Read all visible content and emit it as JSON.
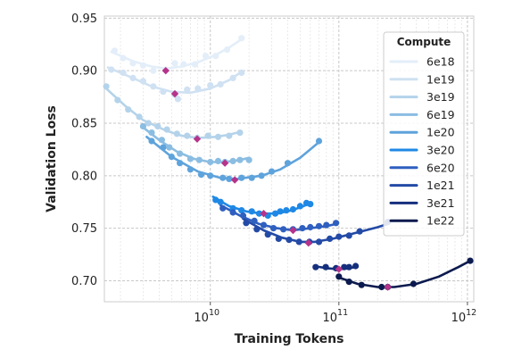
{
  "chart_data": {
    "type": "scatter",
    "xlabel": "Training Tokens",
    "ylabel": "Validation Loss",
    "x_scale": "log",
    "xlim": [
      1500000000.0,
      1120000000000.0
    ],
    "ylim": [
      0.68,
      0.952
    ],
    "x_ticks": [
      {
        "value": 10000000000.0,
        "base": "10",
        "exp": "10"
      },
      {
        "value": 100000000000.0,
        "base": "10",
        "exp": "11"
      },
      {
        "value": 1000000000000.0,
        "base": "10",
        "exp": "12"
      }
    ],
    "y_ticks": [
      {
        "value": 0.7,
        "label": "0.70"
      },
      {
        "value": 0.75,
        "label": "0.75"
      },
      {
        "value": 0.8,
        "label": "0.80"
      },
      {
        "value": 0.85,
        "label": "0.85"
      },
      {
        "value": 0.9,
        "label": "0.90"
      },
      {
        "value": 0.95,
        "label": "0.95"
      }
    ],
    "grid": true,
    "legend": {
      "title": "Compute",
      "placement": "top-right"
    },
    "optimum_color": "#b5338a",
    "series": [
      {
        "name": "6e18",
        "color": "#e3eef9",
        "points": [
          [
            1800000000.0,
            0.919
          ],
          [
            2100000000.0,
            0.912
          ],
          [
            2500000000.0,
            0.907
          ],
          [
            3000000000.0,
            0.905
          ],
          [
            3600000000.0,
            0.9
          ],
          [
            4500000000.0,
            0.901
          ],
          [
            5300000000.0,
            0.907
          ],
          [
            6200000000.0,
            0.906
          ],
          [
            7600000000.0,
            0.906
          ],
          [
            9200000000.0,
            0.914
          ],
          [
            11000000000.0,
            0.914
          ],
          [
            13500000000.0,
            0.92
          ],
          [
            17500000000.0,
            0.931
          ]
        ],
        "fit": [
          [
            1700000000.0,
            0.918
          ],
          [
            2500000000.0,
            0.909
          ],
          [
            3500000000.0,
            0.904
          ],
          [
            4500000000.0,
            0.902
          ],
          [
            6000000000.0,
            0.904
          ],
          [
            8000000000.0,
            0.908
          ],
          [
            11000000000.0,
            0.915
          ],
          [
            14000000000.0,
            0.922
          ],
          [
            17500000000.0,
            0.93
          ]
        ],
        "optimum": [
          4500000000.0,
          0.9
        ]
      },
      {
        "name": "1e19",
        "color": "#cfe1f2",
        "points": [
          [
            1700000000.0,
            0.901
          ],
          [
            2100000000.0,
            0.898
          ],
          [
            2500000000.0,
            0.893
          ],
          [
            3000000000.0,
            0.89
          ],
          [
            3600000000.0,
            0.885
          ],
          [
            4300000000.0,
            0.88
          ],
          [
            5300000000.0,
            0.877
          ],
          [
            5600000000.0,
            0.873
          ],
          [
            6600000000.0,
            0.882
          ],
          [
            8000000000.0,
            0.883
          ],
          [
            10000000000.0,
            0.886
          ],
          [
            12000000000.0,
            0.887
          ],
          [
            15000000000.0,
            0.893
          ],
          [
            17500000000.0,
            0.898
          ]
        ],
        "fit": [
          [
            1600000000.0,
            0.903
          ],
          [
            2500000000.0,
            0.893
          ],
          [
            3500000000.0,
            0.885
          ],
          [
            5000000000.0,
            0.88
          ],
          [
            7000000000.0,
            0.879
          ],
          [
            10000000000.0,
            0.883
          ],
          [
            14000000000.0,
            0.891
          ],
          [
            17500000000.0,
            0.899
          ]
        ],
        "optimum": [
          5300000000.0,
          0.878
        ]
      },
      {
        "name": "3e19",
        "color": "#b4d3ea",
        "points": [
          [
            1550000000.0,
            0.885
          ],
          [
            1900000000.0,
            0.872
          ],
          [
            2300000000.0,
            0.863
          ],
          [
            2800000000.0,
            0.856
          ],
          [
            3300000000.0,
            0.85
          ],
          [
            3900000000.0,
            0.847
          ],
          [
            4600000000.0,
            0.844
          ],
          [
            5500000000.0,
            0.84
          ],
          [
            6600000000.0,
            0.838
          ],
          [
            7900000000.0,
            0.836
          ],
          [
            9600000000.0,
            0.838
          ],
          [
            11500000000.0,
            0.837
          ],
          [
            14000000000.0,
            0.838
          ],
          [
            17000000000.0,
            0.841
          ]
        ],
        "fit": [
          [
            1550000000.0,
            0.883
          ],
          [
            2200000000.0,
            0.866
          ],
          [
            3000000000.0,
            0.853
          ],
          [
            4500000000.0,
            0.843
          ],
          [
            6000000000.0,
            0.838
          ],
          [
            8000000000.0,
            0.836
          ],
          [
            11000000000.0,
            0.837
          ],
          [
            14000000000.0,
            0.839
          ],
          [
            17500000000.0,
            0.842
          ]
        ],
        "optimum": [
          7900000000.0,
          0.835
        ]
      },
      {
        "name": "6e19",
        "color": "#8bbde2",
        "points": [
          [
            3000000000.0,
            0.847
          ],
          [
            3500000000.0,
            0.841
          ],
          [
            4200000000.0,
            0.834
          ],
          [
            4800000000.0,
            0.827
          ],
          [
            5800000000.0,
            0.821
          ],
          [
            7000000000.0,
            0.816
          ],
          [
            8200000000.0,
            0.815
          ],
          [
            10000000000.0,
            0.813
          ],
          [
            11500000000.0,
            0.814
          ],
          [
            13000000000.0,
            0.813
          ],
          [
            15000000000.0,
            0.814
          ],
          [
            17000000000.0,
            0.815
          ],
          [
            20000000000.0,
            0.815
          ]
        ],
        "fit": [
          [
            3000000000.0,
            0.846
          ],
          [
            4000000000.0,
            0.834
          ],
          [
            5500000000.0,
            0.823
          ],
          [
            7500000000.0,
            0.816
          ],
          [
            10000000000.0,
            0.813
          ],
          [
            13000000000.0,
            0.813
          ],
          [
            17000000000.0,
            0.815
          ],
          [
            20000000000.0,
            0.817
          ]
        ],
        "optimum": [
          13000000000.0,
          0.812
        ]
      },
      {
        "name": "1e20",
        "color": "#5ea3dc",
        "points": [
          [
            3500000000.0,
            0.833
          ],
          [
            4300000000.0,
            0.827
          ],
          [
            5000000000.0,
            0.818
          ],
          [
            5800000000.0,
            0.812
          ],
          [
            7000000000.0,
            0.806
          ],
          [
            8500000000.0,
            0.801
          ],
          [
            10000000000.0,
            0.8
          ],
          [
            12500000000.0,
            0.798
          ],
          [
            14000000000.0,
            0.797
          ],
          [
            17500000000.0,
            0.798
          ],
          [
            21000000000.0,
            0.798
          ],
          [
            25000000000.0,
            0.8
          ],
          [
            30000000000.0,
            0.804
          ],
          [
            40000000000.0,
            0.812
          ],
          [
            70000000000.0,
            0.833
          ]
        ],
        "fit": [
          [
            3200000000.0,
            0.837
          ],
          [
            5000000000.0,
            0.818
          ],
          [
            8000000000.0,
            0.804
          ],
          [
            12000000000.0,
            0.798
          ],
          [
            16000000000.0,
            0.797
          ],
          [
            25000000000.0,
            0.8
          ],
          [
            35000000000.0,
            0.806
          ],
          [
            50000000000.0,
            0.817
          ],
          [
            70000000000.0,
            0.832
          ]
        ],
        "optimum": [
          15500000000.0,
          0.796
        ]
      },
      {
        "name": "3e20",
        "color": "#1f88e5",
        "points": [
          [
            11000000000.0,
            0.777
          ],
          [
            12000000000.0,
            0.775
          ],
          [
            15000000000.0,
            0.769
          ],
          [
            17500000000.0,
            0.767
          ],
          [
            21000000000.0,
            0.766
          ],
          [
            24000000000.0,
            0.764
          ],
          [
            28000000000.0,
            0.762
          ],
          [
            32000000000.0,
            0.764
          ],
          [
            35000000000.0,
            0.766
          ],
          [
            39000000000.0,
            0.767
          ],
          [
            44000000000.0,
            0.768
          ],
          [
            50000000000.0,
            0.771
          ],
          [
            56000000000.0,
            0.774
          ],
          [
            60000000000.0,
            0.773
          ]
        ],
        "fit": [
          [
            10500000000.0,
            0.78
          ],
          [
            14000000000.0,
            0.771
          ],
          [
            19000000000.0,
            0.766
          ],
          [
            25000000000.0,
            0.764
          ],
          [
            33000000000.0,
            0.764
          ],
          [
            43000000000.0,
            0.767
          ],
          [
            53000000000.0,
            0.771
          ],
          [
            60000000000.0,
            0.774
          ]
        ],
        "optimum": [
          26000000000.0,
          0.764
        ]
      },
      {
        "name": "6e20",
        "color": "#2f5fbf",
        "points": [
          [
            12500000000.0,
            0.769
          ],
          [
            15000000000.0,
            0.765
          ],
          [
            18000000000.0,
            0.762
          ],
          [
            22000000000.0,
            0.757
          ],
          [
            26000000000.0,
            0.753
          ],
          [
            31000000000.0,
            0.75
          ],
          [
            37000000000.0,
            0.749
          ],
          [
            44000000000.0,
            0.749
          ],
          [
            52000000000.0,
            0.75
          ],
          [
            60000000000.0,
            0.751
          ],
          [
            70000000000.0,
            0.752
          ],
          [
            80000000000.0,
            0.753
          ],
          [
            95000000000.0,
            0.755
          ]
        ],
        "fit": [
          [
            12000000000.0,
            0.772
          ],
          [
            17000000000.0,
            0.762
          ],
          [
            24000000000.0,
            0.754
          ],
          [
            33000000000.0,
            0.75
          ],
          [
            44000000000.0,
            0.748
          ],
          [
            60000000000.0,
            0.75
          ],
          [
            80000000000.0,
            0.752
          ],
          [
            95000000000.0,
            0.754
          ]
        ],
        "optimum": [
          44000000000.0,
          0.748
        ]
      },
      {
        "name": "1e21",
        "color": "#234aa6",
        "points": [
          [
            19000000000.0,
            0.755
          ],
          [
            23000000000.0,
            0.749
          ],
          [
            28000000000.0,
            0.744
          ],
          [
            34000000000.0,
            0.74
          ],
          [
            41000000000.0,
            0.739
          ],
          [
            49000000000.0,
            0.737
          ],
          [
            59000000000.0,
            0.737
          ],
          [
            70000000000.0,
            0.737
          ],
          [
            85000000000.0,
            0.74
          ],
          [
            100000000000.0,
            0.742
          ],
          [
            120000000000.0,
            0.743
          ],
          [
            145000000000.0,
            0.747
          ],
          [
            240000000000.0,
            0.756
          ]
        ],
        "fit": [
          [
            18000000000.0,
            0.759
          ],
          [
            26000000000.0,
            0.748
          ],
          [
            36000000000.0,
            0.741
          ],
          [
            50000000000.0,
            0.737
          ],
          [
            65000000000.0,
            0.737
          ],
          [
            90000000000.0,
            0.74
          ],
          [
            130000000000.0,
            0.745
          ],
          [
            200000000000.0,
            0.751
          ],
          [
            240000000000.0,
            0.754
          ]
        ],
        "optimum": [
          58000000000.0,
          0.736
        ]
      },
      {
        "name": "3e21",
        "color": "#152f7d",
        "points": [
          [
            66000000000.0,
            0.713
          ],
          [
            79000000000.0,
            0.713
          ],
          [
            95000000000.0,
            0.712
          ],
          [
            110000000000.0,
            0.713
          ],
          [
            120000000000.0,
            0.713
          ],
          [
            135000000000.0,
            0.714
          ]
        ],
        "fit": [
          [
            64000000000.0,
            0.714
          ],
          [
            80000000000.0,
            0.712
          ],
          [
            100000000000.0,
            0.711
          ],
          [
            120000000000.0,
            0.712
          ],
          [
            135000000000.0,
            0.713
          ]
        ],
        "optimum": [
          100000000000.0,
          0.711
        ]
      },
      {
        "name": "1e22",
        "color": "#0b1a4e",
        "points": [
          [
            100000000000.0,
            0.704
          ],
          [
            120000000000.0,
            0.699
          ],
          [
            150000000000.0,
            0.696
          ],
          [
            215000000000.0,
            0.694
          ],
          [
            240000000000.0,
            0.694
          ],
          [
            380000000000.0,
            0.697
          ],
          [
            1050000000000.0,
            0.719
          ]
        ],
        "fit": [
          [
            100000000000.0,
            0.703
          ],
          [
            140000000000.0,
            0.697
          ],
          [
            200000000000.0,
            0.694
          ],
          [
            270000000000.0,
            0.694
          ],
          [
            400000000000.0,
            0.697
          ],
          [
            600000000000.0,
            0.704
          ],
          [
            850000000000.0,
            0.713
          ],
          [
            1050000000000.0,
            0.719
          ]
        ],
        "optimum": [
          240000000000.0,
          0.694
        ]
      }
    ]
  }
}
